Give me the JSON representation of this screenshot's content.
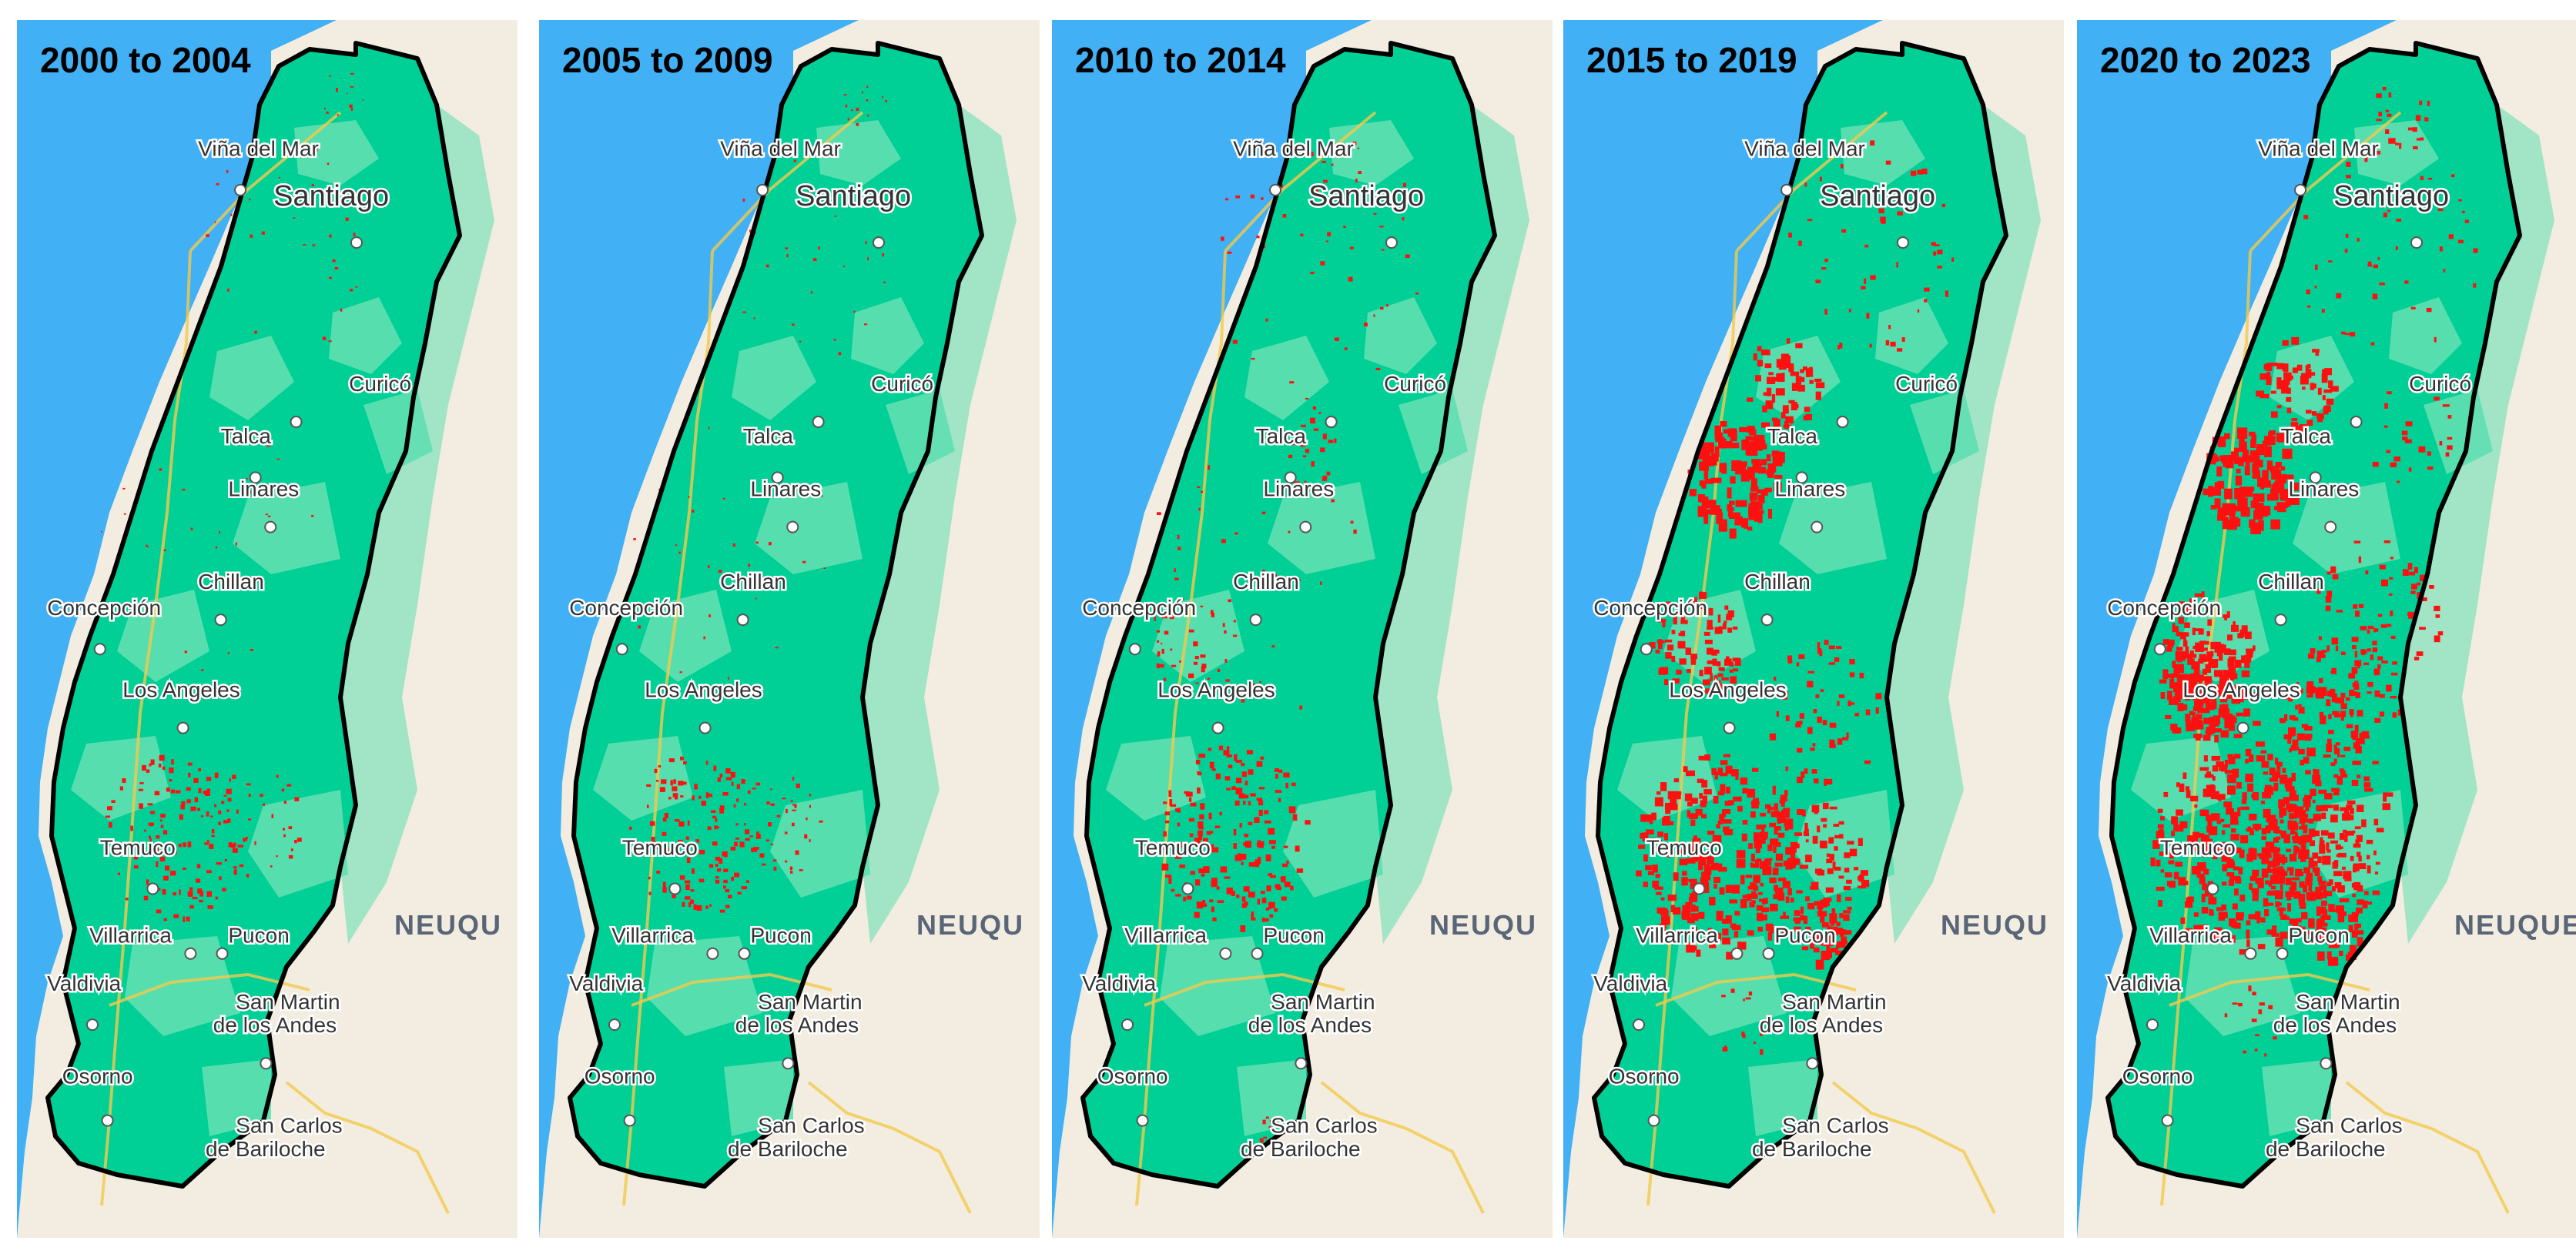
{
  "colors": {
    "ocean": "#41b0f5",
    "land": "#f2ede0",
    "forest": "#00cf96",
    "forest_light": "#5fdfb0",
    "border": "#000000",
    "burn": "#ff1010",
    "road": "#f2c94c",
    "label": "#333333"
  },
  "panels": [
    {
      "title": "2000 to 2004",
      "cities": [
        "Viña del Mar",
        "Santiago",
        "Curicó",
        "Talca",
        "Linares",
        "Chillan",
        "Concepción",
        "Los Angeles",
        "Temuco",
        "Villarrica",
        "Pucon",
        "Valdivia",
        "San Martin",
        "de los Andes",
        "Osorno",
        "San Carlos",
        "de Bariloche"
      ],
      "region": "NEUQU",
      "burn_level": "low"
    },
    {
      "title": "2005 to 2009",
      "cities": [
        "Viña del Mar",
        "Santiago",
        "Curicó",
        "Talca",
        "Linares",
        "Chillan",
        "Concepción",
        "Los Angeles",
        "Temuco",
        "Villarrica",
        "Pucon",
        "Valdivia",
        "San Martin",
        "de los Andes",
        "Osorno",
        "San Carlos",
        "de Bariloche"
      ],
      "region": "NEUQU",
      "burn_level": "low"
    },
    {
      "title": "2010 to 2014",
      "cities": [
        "Viña del Mar",
        "Santiago",
        "Curicó",
        "Talca",
        "Linares",
        "Chillan",
        "Concepción",
        "Los Angeles",
        "Temuco",
        "Villarrica",
        "Pucon",
        "Valdivia",
        "San Martin",
        "de los Andes",
        "Osorno",
        "San Carlos",
        "de Bariloche"
      ],
      "region": "NEUQU",
      "burn_level": "medium"
    },
    {
      "title": "2015 to 2019",
      "cities": [
        "Viña del Mar",
        "Santiago",
        "Curicó",
        "Talca",
        "Linares",
        "Chillan",
        "Concepción",
        "Los Angeles",
        "Temuco",
        "Villarrica",
        "Pucon",
        "Valdivia",
        "San Martin",
        "de los Andes",
        "Osorno",
        "San Carlos",
        "de Bariloche"
      ],
      "region": "NEUQU",
      "burn_level": "high"
    },
    {
      "title": "2020 to 2023",
      "cities": [
        "Viña del Mar",
        "Santiago",
        "Curicó",
        "Talca",
        "Linares",
        "Chillan",
        "Concepción",
        "Los Angeles",
        "Temuco",
        "Villarrica",
        "Pucon",
        "Valdivia",
        "San Martin",
        "de los Andes",
        "Osorno",
        "San Carlos",
        "de Bariloche"
      ],
      "region": "NEUQUE",
      "burn_level": "high"
    }
  ]
}
